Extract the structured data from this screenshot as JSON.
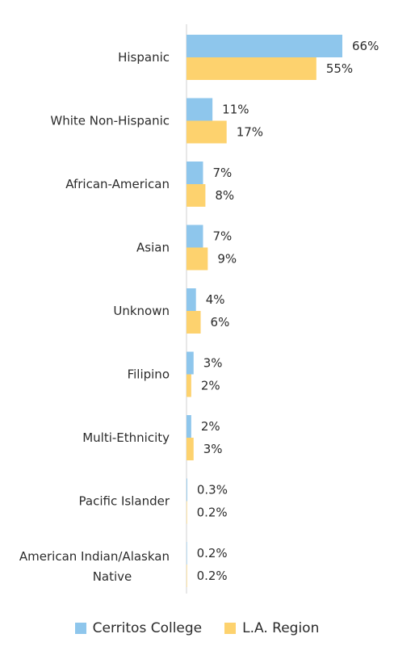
{
  "chart_data": {
    "type": "bar",
    "orientation": "horizontal",
    "categories": [
      "Hispanic",
      "White Non-Hispanic",
      "African-American",
      "Asian",
      "Unknown",
      "Filipino",
      "Multi-Ethnicity",
      "Pacific Islander",
      "American Indian/Alaskan Native"
    ],
    "series": [
      {
        "name": "Cerritos College",
        "color": "#8ec6ec",
        "values": [
          66,
          11,
          7,
          7,
          4,
          3,
          2,
          0.3,
          0.2
        ],
        "labels": [
          "66%",
          "11%",
          "7%",
          "7%",
          "4%",
          "3%",
          "2%",
          "0.3%",
          "0.2%"
        ]
      },
      {
        "name": "L.A. Region",
        "color": "#fdd26e",
        "values": [
          55,
          17,
          8,
          9,
          6,
          2,
          3,
          0.2,
          0.2
        ],
        "labels": [
          "55%",
          "17%",
          "8%",
          "9%",
          "6%",
          "2%",
          "3%",
          "0.2%",
          "0.2%"
        ]
      }
    ],
    "xlim": [
      0,
      66
    ],
    "grid": false,
    "legend_position": "bottom"
  }
}
